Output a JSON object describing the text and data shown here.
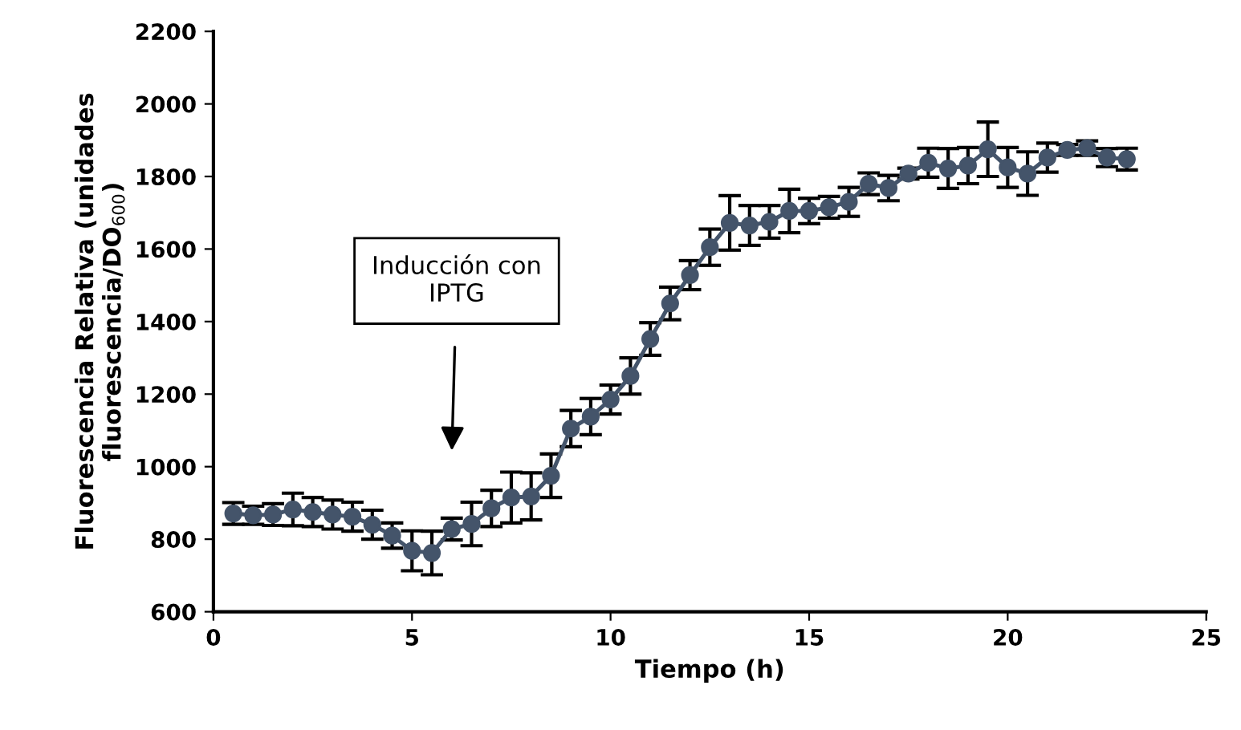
{
  "chart_data": {
    "type": "line",
    "xlabel": "Tiempo (h)",
    "ylabel": "Fluorescencia Relativa (unidades\nfluorescencia/DO$_{600}$)",
    "x": [
      0.5,
      1,
      1.5,
      2,
      2.5,
      3,
      3.5,
      4,
      4.5,
      5,
      5.5,
      6,
      6.5,
      7,
      7.5,
      8,
      8.5,
      9,
      9.5,
      10,
      10.5,
      11,
      11.5,
      12,
      12.5,
      13,
      13.5,
      14,
      14.5,
      15,
      15.5,
      16,
      16.5,
      17,
      17.5,
      18,
      18.5,
      19,
      19.5,
      20,
      20.5,
      21,
      21.5,
      22,
      22.5,
      23
    ],
    "series": [
      {
        "color": "#44546a",
        "values": [
          871,
          866,
          868,
          882,
          875,
          868,
          862,
          840,
          810,
          768,
          762,
          828,
          842,
          885,
          915,
          918,
          975,
          1105,
          1138,
          1185,
          1250,
          1352,
          1450,
          1528,
          1605,
          1672,
          1665,
          1675,
          1705,
          1705,
          1715,
          1730,
          1780,
          1768,
          1808,
          1838,
          1822,
          1830,
          1875,
          1825,
          1808,
          1852,
          1873,
          1878,
          1852,
          1848
        ],
        "errors": [
          30,
          25,
          30,
          45,
          40,
          40,
          40,
          40,
          35,
          55,
          60,
          30,
          60,
          50,
          70,
          65,
          60,
          50,
          50,
          40,
          50,
          45,
          45,
          40,
          50,
          75,
          55,
          45,
          60,
          35,
          30,
          40,
          30,
          35,
          15,
          40,
          55,
          50,
          75,
          55,
          60,
          40,
          15,
          20,
          25,
          30
        ]
      }
    ],
    "marker": "circle",
    "line_style": "solid",
    "grid": false,
    "legend": false,
    "xlim": [
      0,
      25
    ],
    "xticks": [
      0,
      5,
      10,
      15,
      20,
      25
    ],
    "ylim": [
      600,
      2200
    ],
    "yticks": [
      600,
      800,
      1000,
      1200,
      1400,
      1600,
      1800,
      2000,
      2200
    ],
    "annotations": [
      "Inducción con\nIPTG"
    ]
  }
}
